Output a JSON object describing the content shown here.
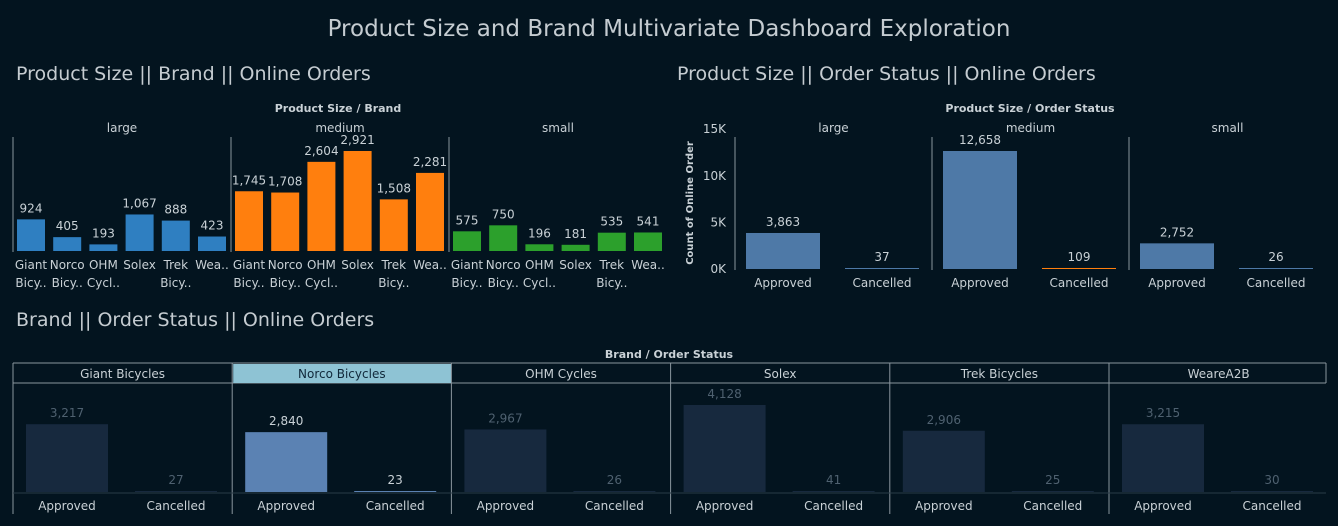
{
  "dashboard": {
    "title": "Product Size and Brand Multivariate Dashboard Exploration"
  },
  "sections": {
    "brand_size": "Product Size || Brand || Online Orders",
    "status_size": "Product Size || Order Status || Online Orders",
    "brand_status": "Brand || Order Status || Online Orders"
  },
  "colors": {
    "large": "#2f7fc1",
    "medium": "#ff7f0e",
    "small": "#2ca02c",
    "status_bar": "#4e79a7",
    "highlight_bar": "#5b82b3",
    "dim_bar": "#17293e",
    "highlight_header": "#8ec3d4",
    "background": "#03141f"
  },
  "chart_data": [
    {
      "type": "bar",
      "header": "Product Size / Brand",
      "panels": [
        "large",
        "medium",
        "small"
      ],
      "categories": [
        "Giant Bicy..",
        "Norco Bicy..",
        "OHM Cycl..",
        "Solex",
        "Trek Bicy..",
        "Wea.."
      ],
      "category_lines": [
        [
          "Giant",
          "Bicy.."
        ],
        [
          "Norco",
          "Bicy.."
        ],
        [
          "OHM",
          "Cycl.."
        ],
        [
          "Solex",
          ""
        ],
        [
          "Trek",
          "Bicy.."
        ],
        [
          "Wea..",
          ""
        ]
      ],
      "series": [
        {
          "name": "large",
          "values": [
            924,
            405,
            193,
            1067,
            888,
            423
          ],
          "labels": [
            "924",
            "405",
            "193",
            "1,067",
            "888",
            "423"
          ]
        },
        {
          "name": "medium",
          "values": [
            1745,
            1708,
            2604,
            2921,
            1508,
            2281
          ],
          "labels": [
            "1,745",
            "1,708",
            "2,604",
            "2,921",
            "1,508",
            "2,281"
          ]
        },
        {
          "name": "small",
          "values": [
            575,
            750,
            196,
            181,
            535,
            541
          ],
          "labels": [
            "575",
            "750",
            "196",
            "181",
            "535",
            "541"
          ]
        }
      ],
      "ylim": [
        0,
        3200
      ]
    },
    {
      "type": "bar",
      "header": "Product Size / Order Status",
      "ylabel": "Count of Online Order",
      "yticks": [
        0,
        5000,
        10000,
        15000
      ],
      "ytick_labels": [
        "0K",
        "5K",
        "10K",
        "15K"
      ],
      "ylim": [
        0,
        17000
      ],
      "panels": [
        "large",
        "medium",
        "small"
      ],
      "categories": [
        "Approved",
        "Cancelled"
      ],
      "series": [
        {
          "name": "large",
          "values": [
            3863,
            37
          ],
          "labels": [
            "3,863",
            "37"
          ]
        },
        {
          "name": "medium",
          "values": [
            12658,
            109
          ],
          "labels": [
            "12,658",
            "109"
          ]
        },
        {
          "name": "small",
          "values": [
            2752,
            26
          ],
          "labels": [
            "2,752",
            "26"
          ]
        }
      ]
    },
    {
      "type": "bar",
      "header": "Brand / Order Status",
      "panels": [
        "Giant Bicycles",
        "Norco Bicycles",
        "OHM Cycles",
        "Solex",
        "Trek Bicycles",
        "WeareA2B"
      ],
      "highlighted_panel": "Norco Bicycles",
      "categories": [
        "Approved",
        "Cancelled"
      ],
      "series": [
        {
          "name": "Giant Bicycles",
          "values": [
            3217,
            27
          ],
          "labels": [
            "3,217",
            "27"
          ]
        },
        {
          "name": "Norco Bicycles",
          "values": [
            2840,
            23
          ],
          "labels": [
            "2,840",
            "23"
          ]
        },
        {
          "name": "OHM Cycles",
          "values": [
            2967,
            26
          ],
          "labels": [
            "2,967",
            "26"
          ]
        },
        {
          "name": "Solex",
          "values": [
            4128,
            41
          ],
          "labels": [
            "4,128",
            "41"
          ]
        },
        {
          "name": "Trek Bicycles",
          "values": [
            2906,
            25
          ],
          "labels": [
            "2,906",
            "25"
          ]
        },
        {
          "name": "WeareA2B",
          "values": [
            3215,
            30
          ],
          "labels": [
            "3,215",
            "30"
          ]
        }
      ],
      "ylim": [
        0,
        4400
      ]
    }
  ]
}
